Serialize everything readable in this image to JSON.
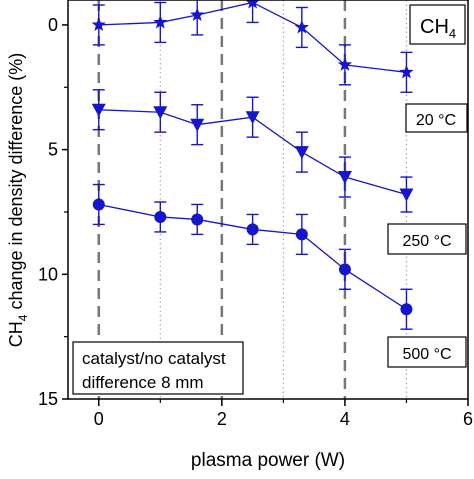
{
  "chart_data": {
    "type": "line",
    "xlabel": "plasma power (W)",
    "ylabel_main": "CH",
    "ylabel_sub": "4",
    "ylabel_rest": " change in density difference (%)",
    "xlim": [
      -0.5,
      6
    ],
    "ylim": [
      15,
      -1
    ],
    "y_inverted": true,
    "x_ticks": [
      0,
      2,
      4,
      6
    ],
    "x_tick_labels": [
      "0",
      "2",
      "4",
      "6"
    ],
    "y_ticks": [
      0,
      5,
      10,
      15
    ],
    "y_tick_labels": [
      "0",
      "5",
      "10",
      "15"
    ],
    "minor_x_ticks": [
      1,
      3,
      5
    ],
    "dashed_vlines": [
      0,
      2,
      4
    ],
    "dotted_vlines": [
      1,
      3,
      5
    ],
    "color": "#1515cc",
    "series": [
      {
        "marker": "star",
        "tag": "20 °C",
        "x": [
          0,
          1,
          1.6,
          2.5,
          3.3,
          4.0,
          5.0
        ],
        "y": [
          0.0,
          -0.1,
          -0.4,
          -0.9,
          0.1,
          1.6,
          1.9
        ],
        "err": [
          0.8,
          0.8,
          0.8,
          0.8,
          0.8,
          0.8,
          0.8
        ]
      },
      {
        "marker": "triangle-down",
        "tag": "250 °C",
        "x": [
          0,
          1,
          1.6,
          2.5,
          3.3,
          4.0,
          5.0
        ],
        "y": [
          3.4,
          3.5,
          4.0,
          3.7,
          5.1,
          6.1,
          6.8
        ],
        "err": [
          0.8,
          0.8,
          0.8,
          0.8,
          0.8,
          0.8,
          0.7
        ]
      },
      {
        "marker": "circle",
        "tag": "500 °C",
        "x": [
          0,
          1,
          1.6,
          2.5,
          3.3,
          4.0,
          5.0
        ],
        "y": [
          7.2,
          7.7,
          7.8,
          8.2,
          8.4,
          9.8,
          11.4
        ],
        "err": [
          0.8,
          0.6,
          0.6,
          0.6,
          0.8,
          0.8,
          0.8
        ]
      }
    ],
    "species_label_main": "CH",
    "species_label_sub": "4",
    "note_line1": "catalyst/no catalyst",
    "note_line2": "difference 8 mm"
  }
}
